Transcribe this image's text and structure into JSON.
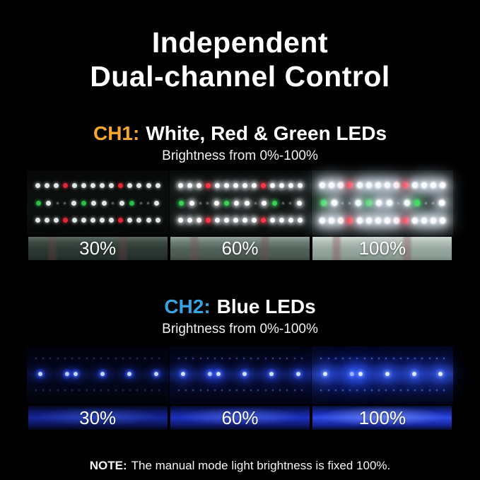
{
  "title": {
    "line1": "Independent",
    "line2": "Dual-channel Control"
  },
  "channels": [
    {
      "id": "ch1",
      "label": "CH1:",
      "label_color": "#F5A82B",
      "name": "White, Red & Green LEDs",
      "caption": "Brightness from 0%-100%",
      "levels": [
        {
          "label": "30%"
        },
        {
          "label": "60%"
        },
        {
          "label": "100%"
        }
      ],
      "led_rows": [
        "wwwrwwwwwrwwww",
        "gwddwgwwdwgddw",
        "wwwrwwwwwrwwww"
      ]
    },
    {
      "id": "ch2",
      "label": "CH2:",
      "label_color": "#38A3E3",
      "name": "Blue LEDs",
      "caption": "Brightness from 0%-100%",
      "levels": [
        {
          "label": "30%"
        },
        {
          "label": "60%"
        },
        {
          "label": "100%"
        }
      ],
      "bright_dot_positions": [
        0.095,
        0.284,
        0.343,
        0.532,
        0.721,
        0.91
      ],
      "dim_dots_per_row": 18
    }
  ],
  "note": {
    "label": "NOTE:",
    "text": "The manual mode light brightness is fixed 100%."
  }
}
